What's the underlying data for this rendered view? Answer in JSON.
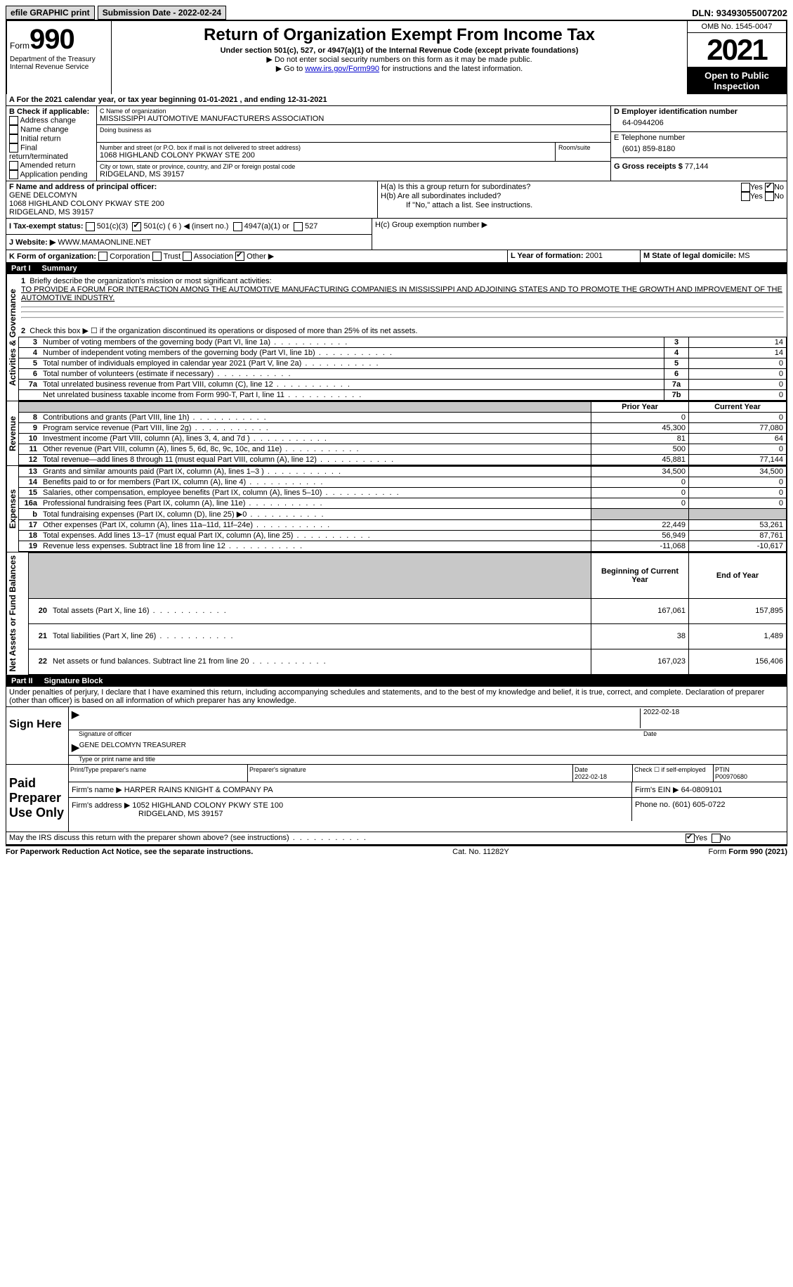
{
  "topbar": {
    "efile": "efile GRAPHIC print",
    "submission_label": "Submission Date - 2022-02-24",
    "dln": "DLN: 93493055007202"
  },
  "header": {
    "form_label": "Form",
    "form_number": "990",
    "dept": "Department of the Treasury Internal Revenue Service",
    "title": "Return of Organization Exempt From Income Tax",
    "subtitle": "Under section 501(c), 527, or 4947(a)(1) of the Internal Revenue Code (except private foundations)",
    "note1": "▶ Do not enter social security numbers on this form as it may be made public.",
    "note2_pre": "▶ Go to ",
    "note2_link": "www.irs.gov/Form990",
    "note2_post": " for instructions and the latest information.",
    "omb": "OMB No. 1545-0047",
    "year": "2021",
    "open": "Open to Public Inspection"
  },
  "period": {
    "text": "A For the 2021 calendar year, or tax year beginning 01-01-2021    , and ending 12-31-2021"
  },
  "boxB": {
    "label": "B Check if applicable:",
    "items": [
      "Address change",
      "Name change",
      "Initial return",
      "Final return/terminated",
      "Amended return",
      "Application pending"
    ]
  },
  "boxC": {
    "name_label": "C Name of organization",
    "name": "MISSISSIPPI AUTOMOTIVE MANUFACTURERS ASSOCIATION",
    "dba_label": "Doing business as",
    "addr_label": "Number and street (or P.O. box if mail is not delivered to street address)",
    "room_label": "Room/suite",
    "addr": "1068 HIGHLAND COLONY PKWAY STE 200",
    "city_label": "City or town, state or province, country, and ZIP or foreign postal code",
    "city": "RIDGELAND, MS  39157"
  },
  "boxD": {
    "label": "D Employer identification number",
    "ein": "64-0944206"
  },
  "boxE": {
    "label": "E Telephone number",
    "phone": "(601) 859-8180"
  },
  "boxG": {
    "label": "G Gross receipts $",
    "amount": "77,144"
  },
  "boxF": {
    "label": "F  Name and address of principal officer:",
    "name": "GENE DELCOMYN",
    "addr": "1068 HIGHLAND COLONY PKWAY STE 200",
    "city": "RIDGELAND, MS  39157"
  },
  "boxH": {
    "ha": "H(a)  Is this a group return for subordinates?",
    "hb": "H(b)  Are all subordinates included?",
    "hb_note": "If \"No,\" attach a list. See instructions.",
    "hc": "H(c)  Group exemption number ▶",
    "yes": "Yes",
    "no": "No"
  },
  "boxI": {
    "label": "I    Tax-exempt status:",
    "c3": "501(c)(3)",
    "c": "501(c) ( 6 ) ◀ (insert no.)",
    "a1": "4947(a)(1) or",
    "s527": "527"
  },
  "boxJ": {
    "label": "J   Website: ▶",
    "url": "WWW.MAMAONLINE.NET"
  },
  "boxK": {
    "label": "K Form of organization:",
    "corp": "Corporation",
    "trust": "Trust",
    "assoc": "Association",
    "other": "Other ▶"
  },
  "boxL": {
    "label": "L Year of formation:",
    "year": "2001"
  },
  "boxM": {
    "label": "M State of legal domicile:",
    "state": "MS"
  },
  "part1": {
    "title": "Part I",
    "name": "Summary",
    "sections": {
      "activities": "Activities & Governance",
      "revenue": "Revenue",
      "expenses": "Expenses",
      "netassets": "Net Assets or Fund Balances"
    },
    "line1_label": "Briefly describe the organization's mission or most significant activities:",
    "line1_text": "TO PROVIDE A FORUM FOR INTERACTION AMONG THE AUTOMOTIVE MANUFACTURING COMPANIES IN MISSISSIPPI AND ADJOINING STATES AND TO PROMOTE THE GROWTH AND IMPROVEMENT OF THE AUTOMOTIVE INDUSTRY.",
    "line2": "Check this box ▶ ☐  if the organization discontinued its operations or disposed of more than 25% of its net assets.",
    "prior_year": "Prior Year",
    "current_year": "Current Year",
    "begin_year": "Beginning of Current Year",
    "end_year": "End of Year",
    "rows_gov": [
      {
        "n": "3",
        "d": "Number of voting members of the governing body (Part VI, line 1a)",
        "box": "3",
        "v": "14"
      },
      {
        "n": "4",
        "d": "Number of independent voting members of the governing body (Part VI, line 1b)",
        "box": "4",
        "v": "14"
      },
      {
        "n": "5",
        "d": "Total number of individuals employed in calendar year 2021 (Part V, line 2a)",
        "box": "5",
        "v": "0"
      },
      {
        "n": "6",
        "d": "Total number of volunteers (estimate if necessary)",
        "box": "6",
        "v": "0"
      },
      {
        "n": "7a",
        "d": "Total unrelated business revenue from Part VIII, column (C), line 12",
        "box": "7a",
        "v": "0"
      },
      {
        "n": "",
        "d": "Net unrelated business taxable income from Form 990-T, Part I, line 11",
        "box": "7b",
        "v": "0"
      }
    ],
    "rows_rev": [
      {
        "n": "8",
        "d": "Contributions and grants (Part VIII, line 1h)",
        "p": "0",
        "c": "0"
      },
      {
        "n": "9",
        "d": "Program service revenue (Part VIII, line 2g)",
        "p": "45,300",
        "c": "77,080"
      },
      {
        "n": "10",
        "d": "Investment income (Part VIII, column (A), lines 3, 4, and 7d )",
        "p": "81",
        "c": "64"
      },
      {
        "n": "11",
        "d": "Other revenue (Part VIII, column (A), lines 5, 6d, 8c, 9c, 10c, and 11e)",
        "p": "500",
        "c": "0"
      },
      {
        "n": "12",
        "d": "Total revenue—add lines 8 through 11 (must equal Part VIII, column (A), line 12)",
        "p": "45,881",
        "c": "77,144"
      }
    ],
    "rows_exp": [
      {
        "n": "13",
        "d": "Grants and similar amounts paid (Part IX, column (A), lines 1–3 )",
        "p": "34,500",
        "c": "34,500"
      },
      {
        "n": "14",
        "d": "Benefits paid to or for members (Part IX, column (A), line 4)",
        "p": "0",
        "c": "0"
      },
      {
        "n": "15",
        "d": "Salaries, other compensation, employee benefits (Part IX, column (A), lines 5–10)",
        "p": "0",
        "c": "0"
      },
      {
        "n": "16a",
        "d": "Professional fundraising fees (Part IX, column (A), line 11e)",
        "p": "0",
        "c": "0"
      },
      {
        "n": "b",
        "d": "Total fundraising expenses (Part IX, column (D), line 25) ▶0",
        "p": "",
        "c": "",
        "shade": true
      },
      {
        "n": "17",
        "d": "Other expenses (Part IX, column (A), lines 11a–11d, 11f–24e)",
        "p": "22,449",
        "c": "53,261"
      },
      {
        "n": "18",
        "d": "Total expenses. Add lines 13–17 (must equal Part IX, column (A), line 25)",
        "p": "56,949",
        "c": "87,761"
      },
      {
        "n": "19",
        "d": "Revenue less expenses. Subtract line 18 from line 12",
        "p": "-11,068",
        "c": "-10,617"
      }
    ],
    "rows_net": [
      {
        "n": "20",
        "d": "Total assets (Part X, line 16)",
        "p": "167,061",
        "c": "157,895"
      },
      {
        "n": "21",
        "d": "Total liabilities (Part X, line 26)",
        "p": "38",
        "c": "1,489"
      },
      {
        "n": "22",
        "d": "Net assets or fund balances. Subtract line 21 from line 20",
        "p": "167,023",
        "c": "156,406"
      }
    ]
  },
  "part2": {
    "title": "Part II",
    "name": "Signature Block",
    "decl": "Under penalties of perjury, I declare that I have examined this return, including accompanying schedules and statements, and to the best of my knowledge and belief, it is true, correct, and complete. Declaration of preparer (other than officer) is based on all information of which preparer has any knowledge.",
    "sign_here": "Sign Here",
    "sig_officer": "Signature of officer",
    "date_label": "Date",
    "sig_date": "2022-02-18",
    "officer_name": "GENE DELCOMYN  TREASURER",
    "type_name": "Type or print name and title",
    "paid": "Paid Preparer Use Only",
    "prep_name_label": "Print/Type preparer's name",
    "prep_sig_label": "Preparer's signature",
    "prep_date_label": "Date",
    "prep_date": "2022-02-18",
    "self_emp": "Check ☐ if self-employed",
    "ptin_label": "PTIN",
    "ptin": "P00970680",
    "firm_name_label": "Firm's name    ▶",
    "firm_name": "HARPER RAINS KNIGHT & COMPANY PA",
    "firm_ein_label": "Firm's EIN ▶",
    "firm_ein": "64-0809101",
    "firm_addr_label": "Firm's address ▶",
    "firm_addr": "1052 HIGHLAND COLONY PKWY STE 100",
    "firm_city": "RIDGELAND, MS  39157",
    "firm_phone_label": "Phone no.",
    "firm_phone": "(601) 605-0722",
    "discuss": "May the IRS discuss this return with the preparer shown above? (see instructions)",
    "discuss_yes": "Yes",
    "discuss_no": "No"
  },
  "footer": {
    "pra": "For Paperwork Reduction Act Notice, see the separate instructions.",
    "cat": "Cat. No. 11282Y",
    "form": "Form 990 (2021)"
  }
}
